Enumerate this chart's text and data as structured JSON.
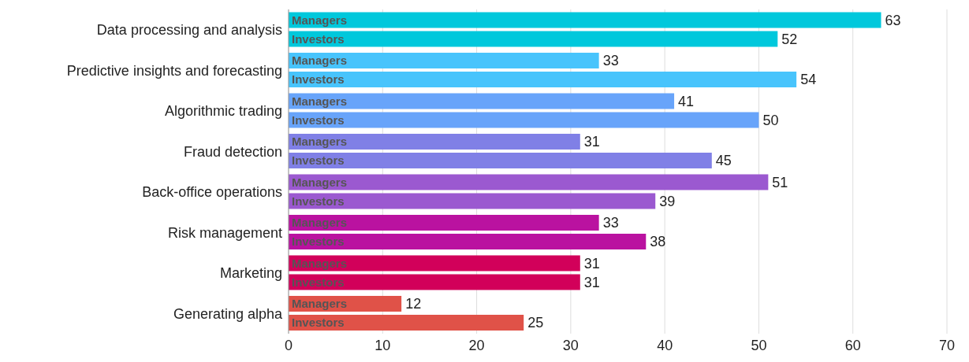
{
  "chart_data": {
    "type": "bar",
    "orientation": "horizontal",
    "categories": [
      "Data processing and analysis",
      "Predictive insights and forecasting",
      "Algorithmic trading",
      "Fraud detection",
      "Back-office operations",
      "Risk management",
      "Marketing",
      "Generating alpha"
    ],
    "series": [
      {
        "name": "Managers",
        "values": [
          63,
          33,
          41,
          31,
          51,
          33,
          31,
          12
        ],
        "colors": [
          "#00c8dc",
          "#48c4fc",
          "#68a4fa",
          "#8080e6",
          "#9b59d0",
          "#ba12a0",
          "#d2005a",
          "#e05248"
        ]
      },
      {
        "name": "Investors",
        "values": [
          52,
          54,
          50,
          45,
          39,
          38,
          31,
          25
        ],
        "colors": [
          "#00c8dc",
          "#48c4fc",
          "#68a4fa",
          "#8080e6",
          "#9b59d0",
          "#ba12a0",
          "#d2005a",
          "#e05248"
        ]
      }
    ],
    "xlim": [
      0,
      70
    ],
    "xticks": [
      0,
      10,
      20,
      30,
      40,
      50,
      60,
      70
    ],
    "grid": "x",
    "legend": false,
    "data_labels": true
  }
}
